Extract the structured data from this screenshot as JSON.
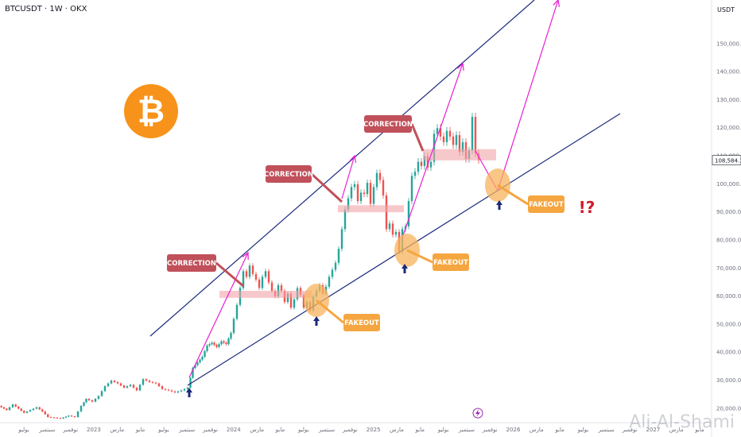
{
  "header": {
    "symbol": "BTCUSDT · 1W · OKX",
    "currency": "USDT"
  },
  "watermark": "Ali-Al-Shami",
  "colors": {
    "up": "#26a69a",
    "down": "#ef5350",
    "channel": "#1b2a7a",
    "projection": "#e91fd3",
    "correction_box": "#f2a3a8",
    "correction_callout": "#c0505a",
    "fakeout_callout": "#f5a640",
    "fakeout_circle": "#f7b35c",
    "bitcoin_logo": "#f7931a",
    "question_mark": "#d11a2a"
  },
  "chart_data": {
    "type": "candlestick",
    "y_axis": {
      "range": [
        15000,
        160000
      ],
      "ticks": [
        "20,000.0",
        "30,000.0",
        "40,000.0",
        "50,000.0",
        "60,000.0",
        "70,000.0",
        "80,000.0",
        "90,000.0",
        "100,000.0",
        "110,000.0",
        "120,000.0",
        "130,000.0",
        "140,000.0",
        "150,000.0"
      ],
      "last_price_label": "108,584.1"
    },
    "x_axis": {
      "ticks": [
        "يوليو",
        "سبتمبر",
        "نوفمبر",
        "2023",
        "مارس",
        "مايو",
        "يوليو",
        "سبتمبر",
        "نوفمبر",
        "2024",
        "مارس",
        "مايو",
        "يوليو",
        "سبتمبر",
        "نوفمبر",
        "2025",
        "مارس",
        "مايو",
        "يوليو",
        "سبتمبر",
        "نوفمبر",
        "2026",
        "مارس",
        "مايو",
        "يوليو",
        "سبتمبر",
        "نوفمبر",
        "2027",
        "مارس",
        "مايو"
      ]
    },
    "price_path": [
      [
        0,
        21000
      ],
      [
        10,
        19500
      ],
      [
        18,
        21500
      ],
      [
        25,
        20000
      ],
      [
        32,
        18500
      ],
      [
        40,
        19500
      ],
      [
        48,
        20500
      ],
      [
        55,
        19000
      ],
      [
        62,
        17000
      ],
      [
        70,
        16800
      ],
      [
        78,
        16500
      ],
      [
        88,
        17500
      ],
      [
        96,
        17000
      ],
      [
        104,
        21000
      ],
      [
        110,
        23500
      ],
      [
        118,
        22500
      ],
      [
        126,
        24500
      ],
      [
        134,
        28000
      ],
      [
        142,
        30000
      ],
      [
        150,
        29000
      ],
      [
        158,
        27500
      ],
      [
        166,
        28500
      ],
      [
        174,
        26500
      ],
      [
        182,
        30500
      ],
      [
        190,
        29500
      ],
      [
        198,
        29000
      ],
      [
        206,
        27000
      ],
      [
        214,
        26500
      ],
      [
        222,
        25800
      ],
      [
        230,
        26500
      ],
      [
        238,
        27500
      ],
      [
        244,
        34500
      ],
      [
        250,
        36500
      ],
      [
        256,
        38500
      ],
      [
        262,
        42500
      ],
      [
        268,
        43500
      ],
      [
        274,
        42000
      ],
      [
        280,
        44000
      ],
      [
        286,
        43000
      ],
      [
        292,
        47000
      ],
      [
        296,
        52000
      ],
      [
        300,
        57000
      ],
      [
        304,
        63000
      ],
      [
        308,
        69000
      ],
      [
        312,
        67000
      ],
      [
        316,
        71000
      ],
      [
        320,
        68000
      ],
      [
        324,
        66000
      ],
      [
        328,
        63000
      ],
      [
        332,
        67000
      ],
      [
        336,
        69000
      ],
      [
        340,
        65000
      ],
      [
        344,
        62000
      ],
      [
        348,
        60000
      ],
      [
        352,
        64000
      ],
      [
        356,
        62000
      ],
      [
        360,
        58000
      ],
      [
        364,
        61000
      ],
      [
        368,
        56000
      ],
      [
        372,
        59000
      ],
      [
        376,
        63000
      ],
      [
        380,
        60500
      ],
      [
        384,
        56000
      ],
      [
        388,
        58000
      ],
      [
        392,
        55000
      ],
      [
        396,
        60000
      ],
      [
        400,
        62000
      ],
      [
        404,
        64000
      ],
      [
        408,
        61000
      ],
      [
        412,
        63500
      ],
      [
        416,
        67000
      ],
      [
        420,
        69500
      ],
      [
        424,
        72000
      ],
      [
        428,
        77000
      ],
      [
        432,
        84000
      ],
      [
        436,
        91000
      ],
      [
        440,
        95000
      ],
      [
        444,
        99000
      ],
      [
        448,
        100000
      ],
      [
        452,
        94000
      ],
      [
        456,
        97000
      ],
      [
        460,
        96500
      ],
      [
        464,
        100500
      ],
      [
        468,
        93000
      ],
      [
        472,
        99000
      ],
      [
        476,
        104000
      ],
      [
        480,
        101500
      ],
      [
        484,
        96000
      ],
      [
        488,
        84000
      ],
      [
        492,
        86000
      ],
      [
        496,
        82000
      ],
      [
        500,
        83000
      ],
      [
        504,
        76000
      ],
      [
        508,
        84000
      ],
      [
        512,
        85000
      ],
      [
        516,
        94000
      ],
      [
        520,
        103000
      ],
      [
        524,
        104500
      ],
      [
        528,
        108000
      ],
      [
        532,
        106500
      ],
      [
        536,
        110000
      ],
      [
        540,
        106000
      ],
      [
        544,
        108000
      ],
      [
        548,
        118000
      ],
      [
        552,
        120000
      ],
      [
        556,
        117000
      ],
      [
        560,
        115000
      ],
      [
        564,
        119000
      ],
      [
        568,
        117000
      ],
      [
        572,
        114000
      ],
      [
        576,
        117500
      ],
      [
        580,
        111500
      ],
      [
        584,
        115000
      ],
      [
        588,
        109000
      ],
      [
        592,
        112000
      ],
      [
        596,
        124000
      ],
      [
        600,
        111000
      ],
      [
        604,
        108584
      ]
    ],
    "annotations": {
      "channel_lines": [
        "ascending channel (upper)",
        "ascending channel (lower)",
        "support trendline"
      ],
      "corrections": [
        {
          "label": "CORRECTION",
          "zone": [
            59500,
            62000
          ]
        },
        {
          "label": "CORRECTION",
          "zone": [
            90000,
            92500
          ]
        },
        {
          "label": "CORRECTION",
          "zone": [
            108500,
            112500
          ]
        }
      ],
      "fakeouts": [
        {
          "label": "FAKEOUT"
        },
        {
          "label": "FAKEOUT"
        },
        {
          "label": "FAKEOUT"
        }
      ],
      "projection": "magenta arrows projecting higher after each fakeout",
      "question_mark": "!?"
    }
  }
}
